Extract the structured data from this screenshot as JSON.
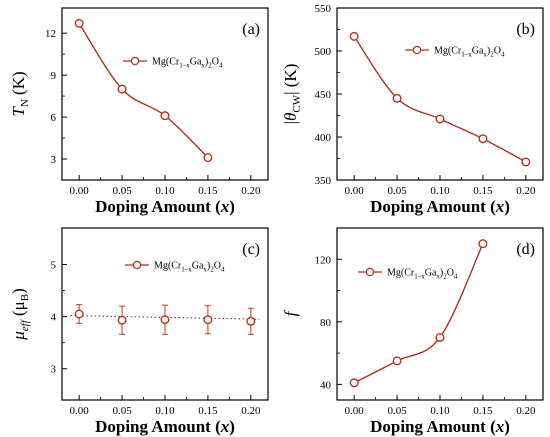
{
  "colors": {
    "line": "#a33520",
    "marker_edge": "#b2351e",
    "marker_fill": "#ffffff",
    "dotted": "#333333",
    "error_bar": "#c0392b",
    "axis": "#000000"
  },
  "legend_text": "Mg(Cr1–xGax)2O4",
  "chart_data": [
    {
      "id": "a",
      "type": "line",
      "panel_label": "(a)",
      "ylabel": "T_N (K)",
      "xlabel": "Doping Amount (x)",
      "xlim": [
        -0.02,
        0.22
      ],
      "ylim": [
        1.5,
        13.8
      ],
      "xticks": [
        "0.00",
        "0.05",
        "0.10",
        "0.15",
        "0.20"
      ],
      "yticks": [
        3,
        6,
        9,
        12
      ],
      "legend_position": "top-right",
      "series": [
        {
          "name": "Mg(Cr1–xGax)2O4",
          "x": [
            0.0,
            0.05,
            0.1,
            0.15
          ],
          "y": [
            12.7,
            8.0,
            6.1,
            3.1
          ]
        }
      ]
    },
    {
      "id": "b",
      "type": "line",
      "panel_label": "(b)",
      "ylabel": "|θ_CW| (K)",
      "xlabel": "Doping Amount (x)",
      "xlim": [
        -0.02,
        0.22
      ],
      "ylim": [
        350,
        550
      ],
      "xticks": [
        "0.00",
        "0.05",
        "0.10",
        "0.15",
        "0.20"
      ],
      "yticks": [
        350,
        400,
        450,
        500,
        550
      ],
      "legend_position": "top-right",
      "series": [
        {
          "name": "Mg(Cr1–xGax)2O4",
          "x": [
            0.0,
            0.05,
            0.1,
            0.15,
            0.2
          ],
          "y": [
            517,
            445,
            421,
            398,
            371
          ]
        }
      ]
    },
    {
      "id": "c",
      "type": "scatter",
      "panel_label": "(c)",
      "ylabel": "μ_eff (μ_B)",
      "xlabel": "Doping Amount (x)",
      "xlim": [
        -0.02,
        0.22
      ],
      "ylim": [
        2.4,
        5.7
      ],
      "xticks": [
        "0.00",
        "0.05",
        "0.10",
        "0.15",
        "0.20"
      ],
      "yticks": [
        3,
        4,
        5
      ],
      "legend_position": "top-right",
      "series": [
        {
          "name": "Mg(Cr1–xGax)2O4",
          "x": [
            0.0,
            0.05,
            0.1,
            0.15,
            0.2
          ],
          "y": [
            4.05,
            3.93,
            3.94,
            3.94,
            3.91
          ],
          "err": [
            0.18,
            0.27,
            0.28,
            0.27,
            0.25
          ]
        }
      ],
      "reference_line": {
        "style": "dotted",
        "y_start": 4.02,
        "y_end": 3.95
      }
    },
    {
      "id": "d",
      "type": "line",
      "panel_label": "(d)",
      "ylabel": "f",
      "xlabel": "Doping Amount (x)",
      "xlim": [
        -0.02,
        0.22
      ],
      "ylim": [
        30,
        140
      ],
      "xticks": [
        "0.00",
        "0.05",
        "0.10",
        "0.15",
        "0.20"
      ],
      "yticks": [
        40,
        80,
        120
      ],
      "legend_position": "top-left",
      "series": [
        {
          "name": "Mg(Cr1–xGax)2O4",
          "x": [
            0.0,
            0.05,
            0.1,
            0.15
          ],
          "y": [
            41,
            55,
            70,
            130
          ]
        }
      ]
    }
  ]
}
